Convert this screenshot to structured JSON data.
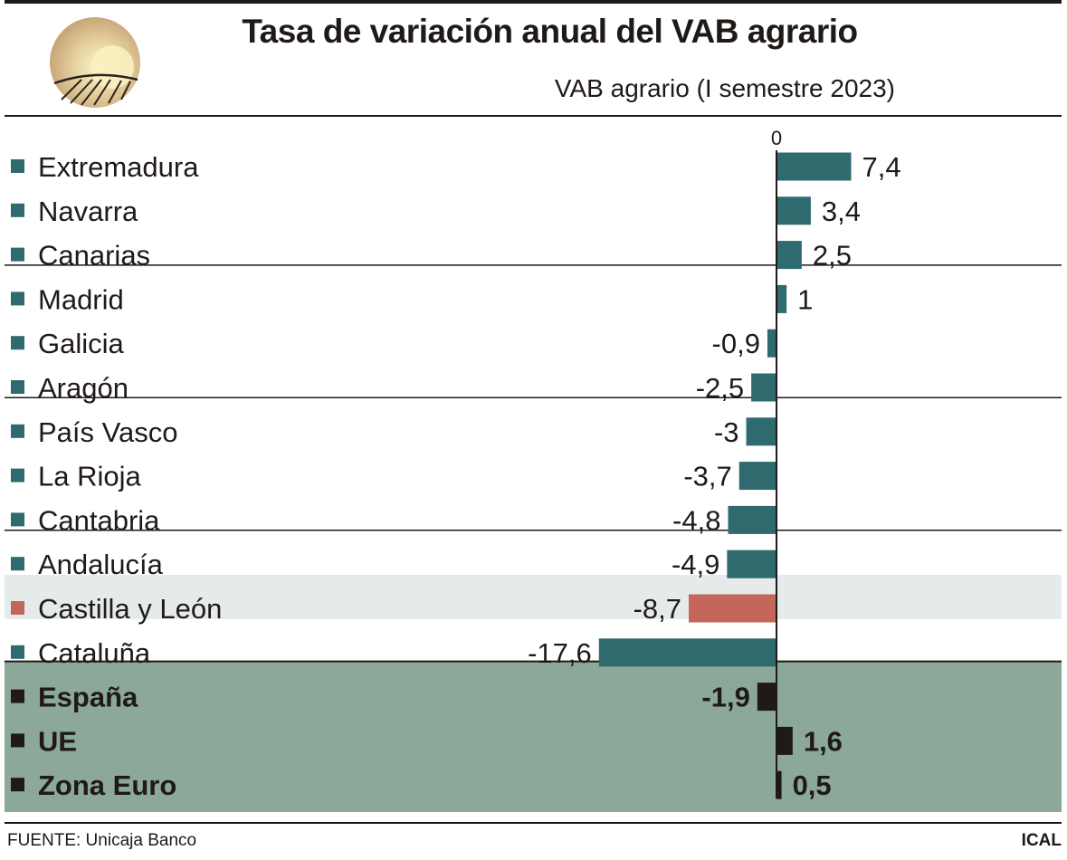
{
  "header": {
    "title": "Tasa de variación anual del VAB agrario",
    "subtitle": "VAB agrario (I semestre 2023)"
  },
  "footer": {
    "source": "FUENTE: Unicaja Banco",
    "brand": "ICAL"
  },
  "colors": {
    "regular_bar": "#2e6a6e",
    "highlight_bar": "#c4665a",
    "aggregate_bar": "#1f1a17",
    "highlight_row_bg": "#e4ebea",
    "aggregate_bg": "#8ca899"
  },
  "chart_data": {
    "type": "bar",
    "orientation": "horizontal",
    "zero_label": "0",
    "categories": [
      "Extremadura",
      "Navarra",
      "Canarias",
      "Madrid",
      "Galicia",
      "Aragón",
      "País Vasco",
      "La Rioja",
      "Cantabria",
      "Andalucía",
      "Castilla y León",
      "Cataluña",
      "España",
      "UE",
      "Zona Euro"
    ],
    "values": [
      7.4,
      3.4,
      2.5,
      1,
      -0.9,
      -2.5,
      -3,
      -3.7,
      -4.8,
      -4.9,
      -8.7,
      -17.6,
      -1.9,
      1.6,
      0.5
    ],
    "value_labels": [
      "7,4",
      "3,4",
      "2,5",
      "1",
      "-0,9",
      "-2,5",
      "-3",
      "-3,7",
      "-4,8",
      "-4,9",
      "-8,7",
      "-17,6",
      "-1,9",
      "1,6",
      "0,5"
    ],
    "highlighted": [
      "Castilla y León"
    ],
    "aggregates": [
      "España",
      "UE",
      "Zona Euro"
    ]
  }
}
